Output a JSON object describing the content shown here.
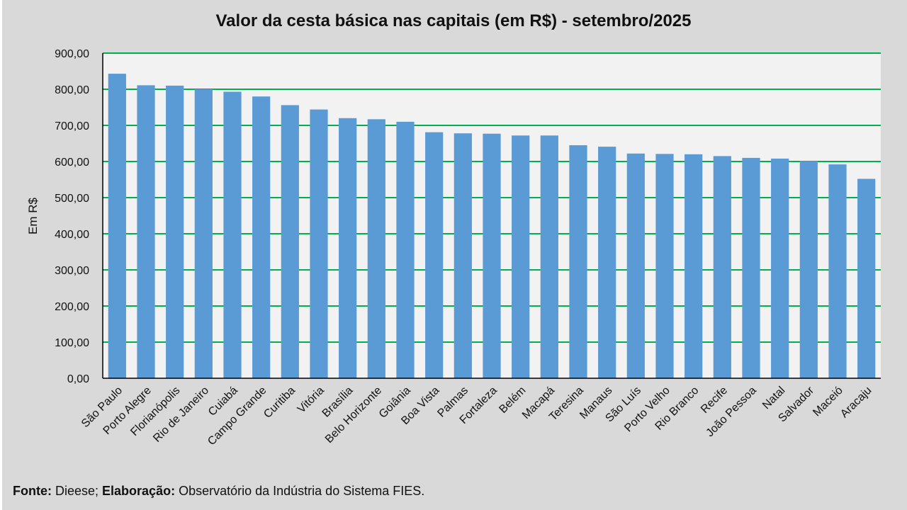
{
  "chart_data": {
    "type": "bar",
    "title": "Valor da cesta básica nas capitais (em R$) - setembro/2025",
    "xlabel": "",
    "ylabel": "Em R$",
    "ylim": [
      0,
      900
    ],
    "yticks": [
      0,
      100,
      200,
      300,
      400,
      500,
      600,
      700,
      800,
      900
    ],
    "ytick_labels": [
      "0,00",
      "100,00",
      "200,00",
      "300,00",
      "400,00",
      "500,00",
      "600,00",
      "700,00",
      "800,00",
      "900,00"
    ],
    "grid": true,
    "categories": [
      "São Paulo",
      "Porto Alegre",
      "Florianópolis",
      "Rio de Janeiro",
      "Cuiabá",
      "Campo Grande",
      "Curitiba",
      "Vitória",
      "Brasília",
      "Belo Horizonte",
      "Goiânia",
      "Boa Vista",
      "Palmas",
      "Fortaleza",
      "Belém",
      "Macapá",
      "Teresina",
      "Manaus",
      "São Luís",
      "Porto Velho",
      "Rio Branco",
      "Recife",
      "João Pessoa",
      "Natal",
      "Salvador",
      "Maceió",
      "Aracaju"
    ],
    "values": [
      843,
      811,
      810,
      800,
      793,
      780,
      756,
      744,
      720,
      717,
      710,
      681,
      678,
      677,
      672,
      672,
      645,
      641,
      622,
      621,
      620,
      615,
      610,
      608,
      601,
      592,
      552
    ],
    "colors": {
      "bar": "#5b9bd5",
      "grid": "#00b050",
      "plot_bg": "#f2f2f2",
      "page_bg": "#d9d9d9"
    }
  },
  "source": {
    "fonte_label": "Fonte:",
    "fonte_text": " Dieese; ",
    "elab_label": "Elaboração:",
    "elab_text": " Observatório da Indústria do Sistema FIES."
  }
}
